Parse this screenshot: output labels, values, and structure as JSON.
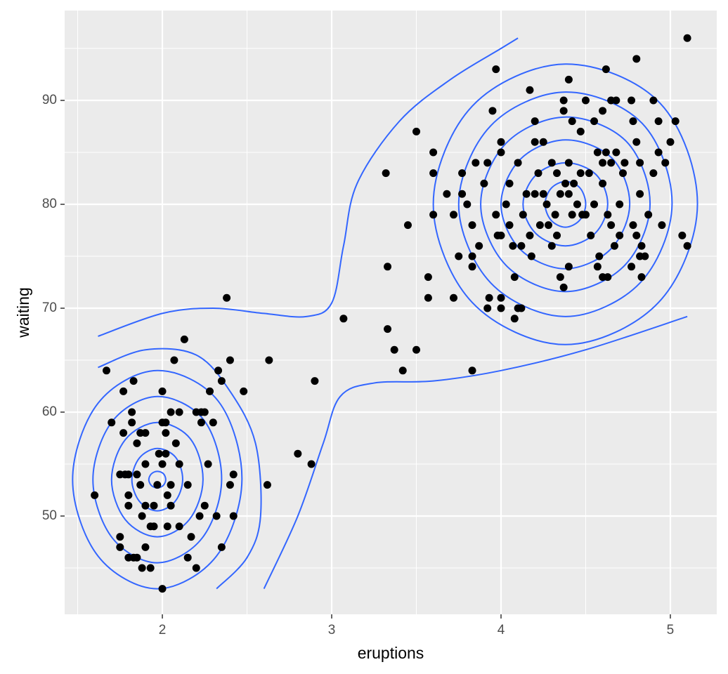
{
  "chart_data": {
    "type": "scatter",
    "x_label": "eruptions",
    "y_label": "waiting",
    "x": [
      1.6,
      1.67,
      1.7,
      1.75,
      1.75,
      1.75,
      1.77,
      1.77,
      1.78,
      1.8,
      1.8,
      1.8,
      1.82,
      1.82,
      1.83,
      1.83,
      1.8,
      1.85,
      1.85,
      1.85,
      1.87,
      1.87,
      1.88,
      1.88,
      1.9,
      1.9,
      1.9,
      1.9,
      1.93,
      1.93,
      1.95,
      1.95,
      1.97,
      1.98,
      2.0,
      2.0,
      2.0,
      2.0,
      2.02,
      2.02,
      2.02,
      2.03,
      2.03,
      2.05,
      2.05,
      2.05,
      2.07,
      2.08,
      2.1,
      2.1,
      2.1,
      2.13,
      2.15,
      2.15,
      2.17,
      2.2,
      2.2,
      2.22,
      2.23,
      2.23,
      2.25,
      2.25,
      2.27,
      2.28,
      2.3,
      2.32,
      2.33,
      2.35,
      2.35,
      2.38,
      2.4,
      2.4,
      2.42,
      2.42,
      2.48,
      2.62,
      2.63,
      2.8,
      2.88,
      2.9,
      3.07,
      3.32,
      3.33,
      3.33,
      3.37,
      3.42,
      3.45,
      3.5,
      3.5,
      3.57,
      3.57,
      3.6,
      3.6,
      3.6,
      3.68,
      3.72,
      3.72,
      3.75,
      3.77,
      3.77,
      3.8,
      3.83,
      3.83,
      3.83,
      3.83,
      3.85,
      3.87,
      3.9,
      3.92,
      3.92,
      3.93,
      3.95,
      3.97,
      3.98,
      4.0,
      4.0,
      4.0,
      4.0,
      4.0,
      4.03,
      4.05,
      4.05,
      4.07,
      4.08,
      4.08,
      3.97,
      4.1,
      4.1,
      4.12,
      4.12,
      4.13,
      4.15,
      4.17,
      4.17,
      4.18,
      4.2,
      4.2,
      4.2,
      4.22,
      4.23,
      4.25,
      4.27,
      4.28,
      4.3,
      4.32,
      4.33,
      4.33,
      4.35,
      4.35,
      4.37,
      4.37,
      4.37,
      4.38,
      4.4,
      4.4,
      4.42,
      4.42,
      4.43,
      4.4,
      4.45,
      4.47,
      4.47,
      4.48,
      4.5,
      4.5,
      4.52,
      4.53,
      4.55,
      4.57,
      4.58,
      4.6,
      4.6,
      4.6,
      4.62,
      4.63,
      4.63,
      4.65,
      4.65,
      4.67,
      4.68,
      4.7,
      4.7,
      4.72,
      4.73,
      4.62,
      4.77,
      4.78,
      4.8,
      4.8,
      4.82,
      4.83,
      4.83,
      4.85,
      4.87,
      4.9,
      4.93,
      4.93,
      4.95,
      4.97,
      5.0,
      5.03,
      5.07,
      5.1,
      5.1,
      4.8,
      4.68,
      4.65,
      4.82,
      4.82,
      4.9,
      4.6,
      4.4,
      4.3,
      4.25,
      4.57,
      4.55,
      4.77,
      4.78
    ],
    "values": [
      52,
      64,
      59,
      54,
      47,
      48,
      62,
      58,
      54,
      52,
      51,
      54,
      60,
      59,
      63,
      46,
      46,
      46,
      57,
      54,
      58,
      53,
      50,
      45,
      51,
      55,
      58,
      47,
      49,
      45,
      51,
      49,
      53,
      56,
      62,
      59,
      55,
      43,
      59,
      56,
      58,
      52,
      49,
      53,
      51,
      60,
      65,
      57,
      55,
      49,
      60,
      67,
      53,
      46,
      48,
      60,
      45,
      50,
      60,
      59,
      60,
      51,
      55,
      62,
      59,
      50,
      64,
      63,
      47,
      71,
      53,
      65,
      54,
      50,
      62,
      53,
      65,
      56,
      55,
      63,
      69,
      83,
      74,
      68,
      66,
      64,
      78,
      87,
      66,
      73,
      71,
      85,
      83,
      79,
      81,
      79,
      71,
      75,
      83,
      81,
      80,
      78,
      75,
      74,
      64,
      84,
      76,
      82,
      84,
      70,
      71,
      89,
      79,
      77,
      86,
      85,
      77,
      71,
      70,
      80,
      82,
      78,
      76,
      73,
      69,
      93,
      84,
      70,
      70,
      76,
      79,
      81,
      91,
      77,
      75,
      88,
      86,
      81,
      83,
      78,
      86,
      80,
      78,
      76,
      79,
      83,
      77,
      81,
      73,
      72,
      90,
      89,
      82,
      81,
      74,
      88,
      79,
      82,
      92,
      80,
      87,
      83,
      79,
      90,
      79,
      83,
      77,
      80,
      74,
      75,
      84,
      82,
      73,
      85,
      79,
      73,
      84,
      78,
      76,
      85,
      80,
      77,
      83,
      84,
      93,
      90,
      88,
      86,
      77,
      84,
      73,
      76,
      75,
      79,
      90,
      88,
      85,
      78,
      84,
      86,
      88,
      77,
      76,
      96,
      94,
      90,
      90,
      75,
      81,
      83,
      89,
      84,
      84,
      81,
      85,
      88,
      74,
      78
    ],
    "color": "#000000",
    "contour_color": "#3366ff",
    "contours": [
      {
        "closed": true,
        "x": [
          4.5,
          4.466,
          4.38,
          4.296,
          4.26,
          4.296,
          4.38,
          4.464
        ],
        "y": [
          80,
          81.58,
          82.2,
          81.54,
          80,
          78.46,
          77.8,
          78.46
        ]
      },
      {
        "closed": true,
        "x": [
          4.63,
          4.56,
          4.38,
          4.205,
          4.13,
          4.205,
          4.38,
          4.555
        ],
        "y": [
          80,
          82.88,
          84,
          82.8,
          80,
          77.2,
          76,
          77.2
        ]
      },
      {
        "closed": true,
        "x": [
          4.76,
          4.654,
          4.38,
          4.114,
          4.0,
          4.114,
          4.38,
          4.646
        ],
        "y": [
          80,
          84.46,
          86.2,
          84.34,
          80,
          75.66,
          73.8,
          75.66
        ]
      },
      {
        "closed": true,
        "x": [
          4.88,
          4.74,
          4.38,
          4.03,
          3.88,
          4.03,
          4.38,
          4.73
        ],
        "y": [
          80,
          86.05,
          88.4,
          85.88,
          80,
          74.12,
          71.6,
          74.12
        ]
      },
      {
        "closed": true,
        "x": [
          5.01,
          4.834,
          4.38,
          3.939,
          3.75,
          3.939,
          4.38,
          4.821
        ],
        "y": [
          80,
          87.78,
          90.8,
          87.56,
          80,
          72.44,
          69.2,
          72.44
        ]
      },
      {
        "closed": true,
        "x": [
          5.16,
          4.94,
          4.38,
          3.83,
          3.6,
          3.83,
          4.38,
          4.93
        ],
        "y": [
          80,
          89.72,
          93.5,
          89.45,
          80,
          70.55,
          66.5,
          70.55
        ]
      },
      {
        "closed": true,
        "x": [
          2.02,
          2.006,
          1.97,
          1.935,
          1.92,
          1.935,
          1.97,
          2.005
        ],
        "y": [
          53.5,
          54.08,
          54.3,
          54.06,
          53.5,
          52.94,
          52.7,
          52.94
        ]
      },
      {
        "closed": true,
        "x": [
          2.12,
          2.078,
          1.97,
          1.865,
          1.82,
          1.865,
          1.97,
          2.075
        ],
        "y": [
          53.5,
          55.66,
          56.5,
          55.6,
          53.5,
          51.4,
          50.5,
          51.4
        ]
      },
      {
        "closed": true,
        "x": [
          2.24,
          2.164,
          1.97,
          1.781,
          1.7,
          1.781,
          1.97,
          2.159
        ],
        "y": [
          53.5,
          57.46,
          59,
          57.35,
          53.5,
          49.65,
          48,
          49.65
        ]
      },
      {
        "closed": true,
        "x": [
          2.35,
          2.244,
          1.97,
          1.704,
          1.59,
          1.704,
          1.97,
          2.236
        ],
        "y": [
          53.5,
          59.26,
          61.5,
          59.1,
          53.5,
          47.9,
          45.5,
          47.9
        ]
      },
      {
        "closed": true,
        "x": [
          2.47,
          2.33,
          1.97,
          1.62,
          1.47,
          1.62,
          1.97,
          2.32
        ],
        "y": [
          53.5,
          61.06,
          64,
          60.85,
          53.5,
          46.15,
          43,
          46.15
        ]
      },
      {
        "closed": false,
        "x": [
          1.62,
          1.9,
          2.2,
          2.4,
          2.55,
          2.58,
          2.5,
          2.32
        ],
        "y": [
          64.3,
          66,
          65.5,
          62,
          57,
          50,
          46,
          43
        ]
      },
      {
        "closed": false,
        "x": [
          1.62,
          2.0,
          2.3,
          2.6,
          2.85,
          3.0,
          3.07,
          3.15,
          3.4,
          3.7,
          4.0,
          4.1
        ],
        "y": [
          67.3,
          69.5,
          70,
          69.5,
          69.2,
          70.5,
          76,
          82,
          88,
          92,
          95,
          96
        ]
      },
      {
        "closed": false,
        "x": [
          2.6,
          2.8,
          2.95,
          3.05,
          3.25,
          3.6,
          4.0,
          4.5,
          5.1
        ],
        "y": [
          43,
          50,
          57,
          61.5,
          62.8,
          63,
          64,
          66,
          69.2
        ]
      }
    ],
    "xlim": [
      1.423,
      5.274
    ],
    "ylim": [
      40.54,
      98.65
    ],
    "xticks": [
      2,
      3,
      4,
      5
    ],
    "yticks": [
      50,
      60,
      70,
      80,
      90
    ],
    "xminor": [
      1.5,
      2.5,
      3.5,
      4.5
    ],
    "yminor": [
      45,
      55,
      65,
      75,
      85,
      95
    ],
    "grid": true
  }
}
